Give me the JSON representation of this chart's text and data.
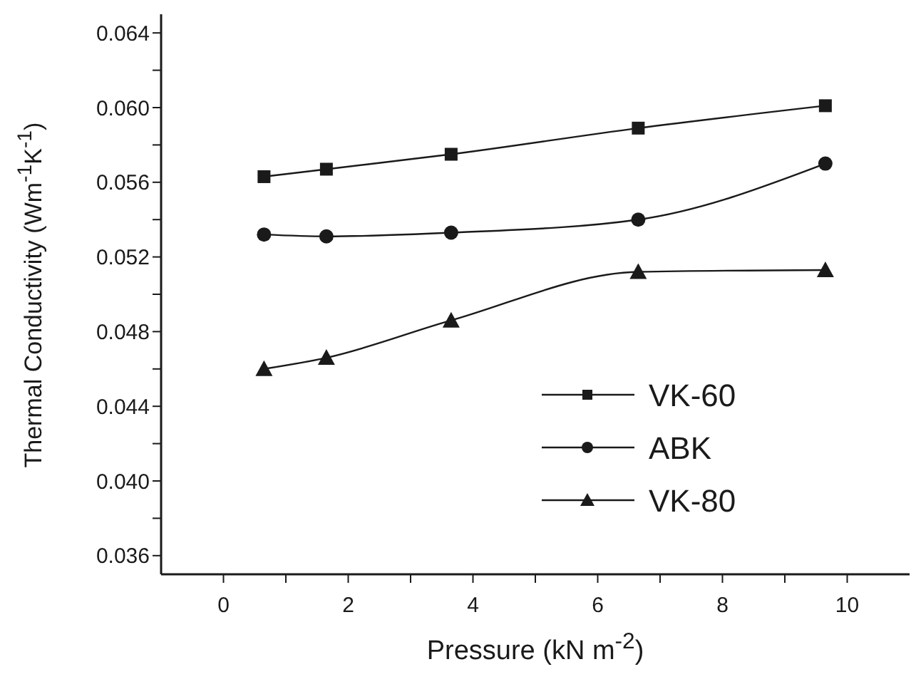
{
  "chart_data": {
    "type": "line",
    "xlabel": "Pressure (kN m$^{-2}$)",
    "ylabel": "Thermal Conductivity (Wm$^{-1}$K$^{-1}$)",
    "x": [
      0.65,
      1.65,
      3.65,
      6.65,
      9.65
    ],
    "series": [
      {
        "name": "VK-60",
        "color": "#1a1a1a",
        "marker": "square",
        "values": [
          0.0563,
          0.0567,
          0.0575,
          0.0589,
          0.0601
        ]
      },
      {
        "name": "ABK",
        "color": "#1a1a1a",
        "marker": "circle",
        "values": [
          0.0532,
          0.0531,
          0.0533,
          0.054,
          0.057
        ]
      },
      {
        "name": "VK-80",
        "color": "#1a1a1a",
        "marker": "triangle",
        "values": [
          0.046,
          0.0466,
          0.0486,
          0.0512,
          0.0513
        ]
      }
    ],
    "xlim": [
      -1,
      11
    ],
    "xticks": [
      0,
      {
        "value": 1,
        "label": null
      },
      2,
      {
        "value": 3,
        "label": null
      },
      4,
      {
        "value": 5,
        "label": null
      },
      6,
      {
        "value": 7,
        "label": null
      },
      8,
      {
        "value": 9,
        "label": null
      },
      10
    ],
    "ylim": [
      0.035,
      0.065
    ],
    "yticks": [
      0.036,
      {
        "value": 0.038,
        "label": null
      },
      {
        "value": 0.04,
        "label": "0.040"
      },
      {
        "value": 0.042,
        "label": null
      },
      0.044,
      {
        "value": 0.046,
        "label": null
      },
      0.048,
      {
        "value": 0.05,
        "label": null
      },
      0.052,
      {
        "value": 0.054,
        "label": null
      },
      0.056,
      {
        "value": 0.058,
        "label": null
      },
      {
        "value": 0.06,
        "label": "0.060"
      },
      {
        "value": 0.062,
        "label": null
      },
      0.064
    ],
    "grid": false,
    "legend": "bottom right",
    "line_style": "solid"
  }
}
